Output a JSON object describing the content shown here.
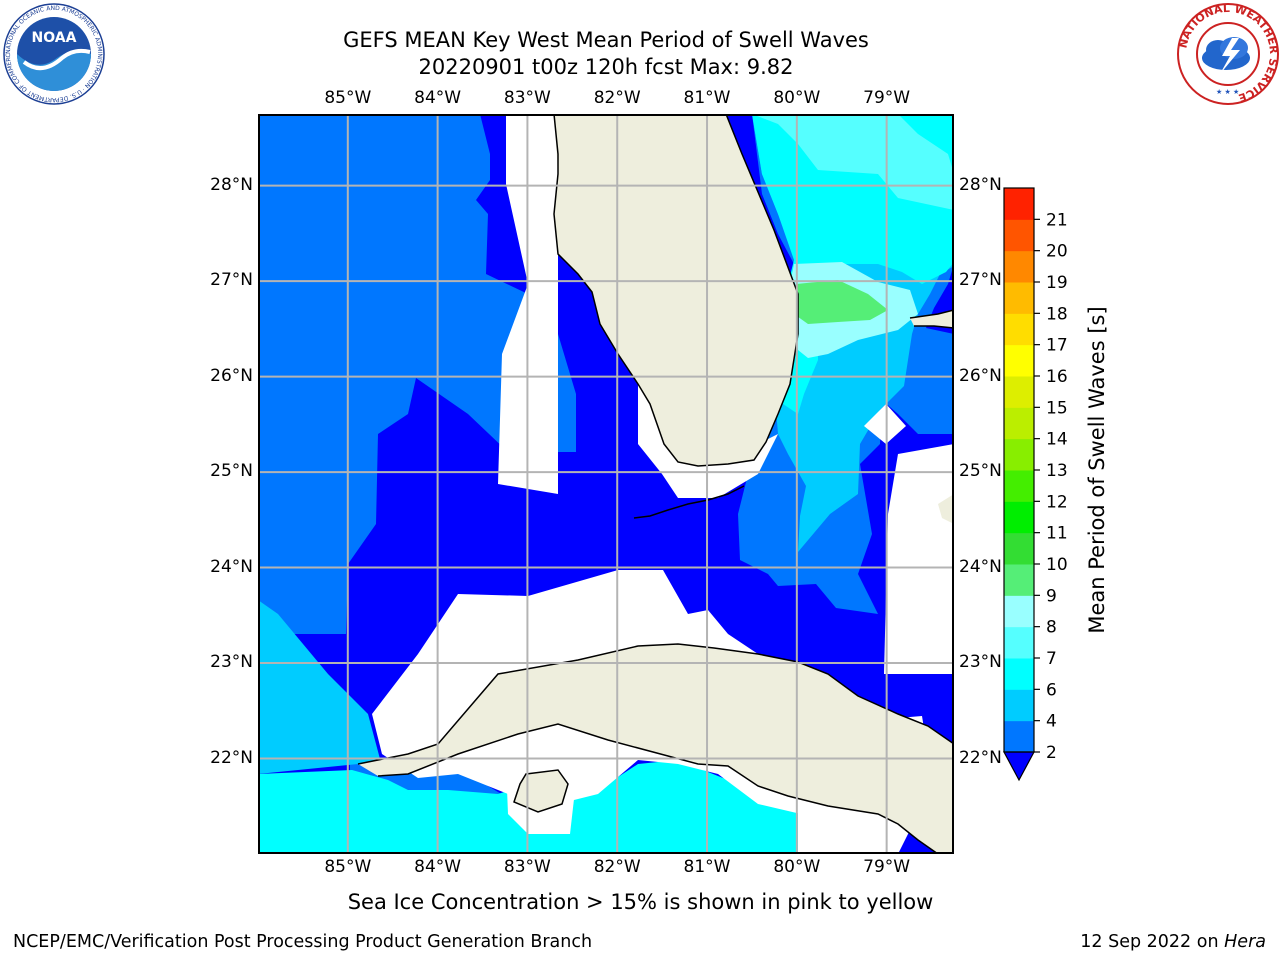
{
  "title": {
    "line1": "GEFS MEAN Key West Mean Period of Swell Waves",
    "line2": "20220901 t00z 120h fcst   Max: 9.82"
  },
  "axes": {
    "lon_labels": [
      "85°W",
      "84°W",
      "83°W",
      "82°W",
      "81°W",
      "80°W",
      "79°W"
    ],
    "lon_values": [
      -85,
      -84,
      -83,
      -82,
      -81,
      -80,
      -79
    ],
    "lat_labels": [
      "28°N",
      "27°N",
      "26°N",
      "25°N",
      "24°N",
      "23°N",
      "22°N"
    ],
    "lat_values": [
      28,
      27,
      26,
      25,
      24,
      23,
      22
    ],
    "lon_range": [
      -86.0,
      -78.25
    ],
    "lat_range": [
      21.0,
      28.75
    ],
    "grid": true
  },
  "colorbar": {
    "label": "Mean Period of Swell Waves [s]",
    "tick_labels": [
      "2",
      "4",
      "6",
      "7",
      "8",
      "9",
      "10",
      "11",
      "12",
      "13",
      "14",
      "15",
      "16",
      "17",
      "18",
      "19",
      "20",
      "21"
    ],
    "tick_values": [
      2,
      4,
      6,
      7,
      8,
      9,
      10,
      11,
      12,
      13,
      14,
      15,
      16,
      17,
      18,
      19,
      20,
      21
    ],
    "band_colors": [
      "#0077ff",
      "#00ccff",
      "#00ffff",
      "#55ffff",
      "#99ffff",
      "#55ee77",
      "#33dd33",
      "#00ee00",
      "#44ee00",
      "#88ee00",
      "#bbee00",
      "#ddee00",
      "#ffff00",
      "#ffdd00",
      "#ffbb00",
      "#ff8800",
      "#ff5500",
      "#ff2200"
    ],
    "under_color": "#0000ff",
    "max_color": "#ff0000"
  },
  "field_colors": {
    "under_2": "#0000ff",
    "band_2_4": "#0077ff",
    "band_4_6": "#00ccff",
    "band_6_7": "#00ffff",
    "band_7_8": "#55ffff",
    "band_8_9": "#99ffff",
    "band_9_10": "#55ee77",
    "land": "#eeeedd",
    "no_data": "#ffffff"
  },
  "footer": {
    "sea_ice_note": "Sea Ice Concentration > 15% is shown in pink to yellow",
    "credit": "NCEP/EMC/Verification Post Processing Product Generation Branch",
    "date": "12 Sep 2022 on",
    "host": "Hera"
  },
  "logos": {
    "noaa": {
      "icon": "noaa-logo",
      "text": "NOAA",
      "ring_text": "NATIONAL OCEANIC AND ATMOSPHERIC ADMINISTRATION · U.S. DEPARTMENT OF COMMERCE"
    },
    "nws": {
      "icon": "nws-logo",
      "ring_text": "NATIONAL WEATHER SERVICE"
    }
  }
}
